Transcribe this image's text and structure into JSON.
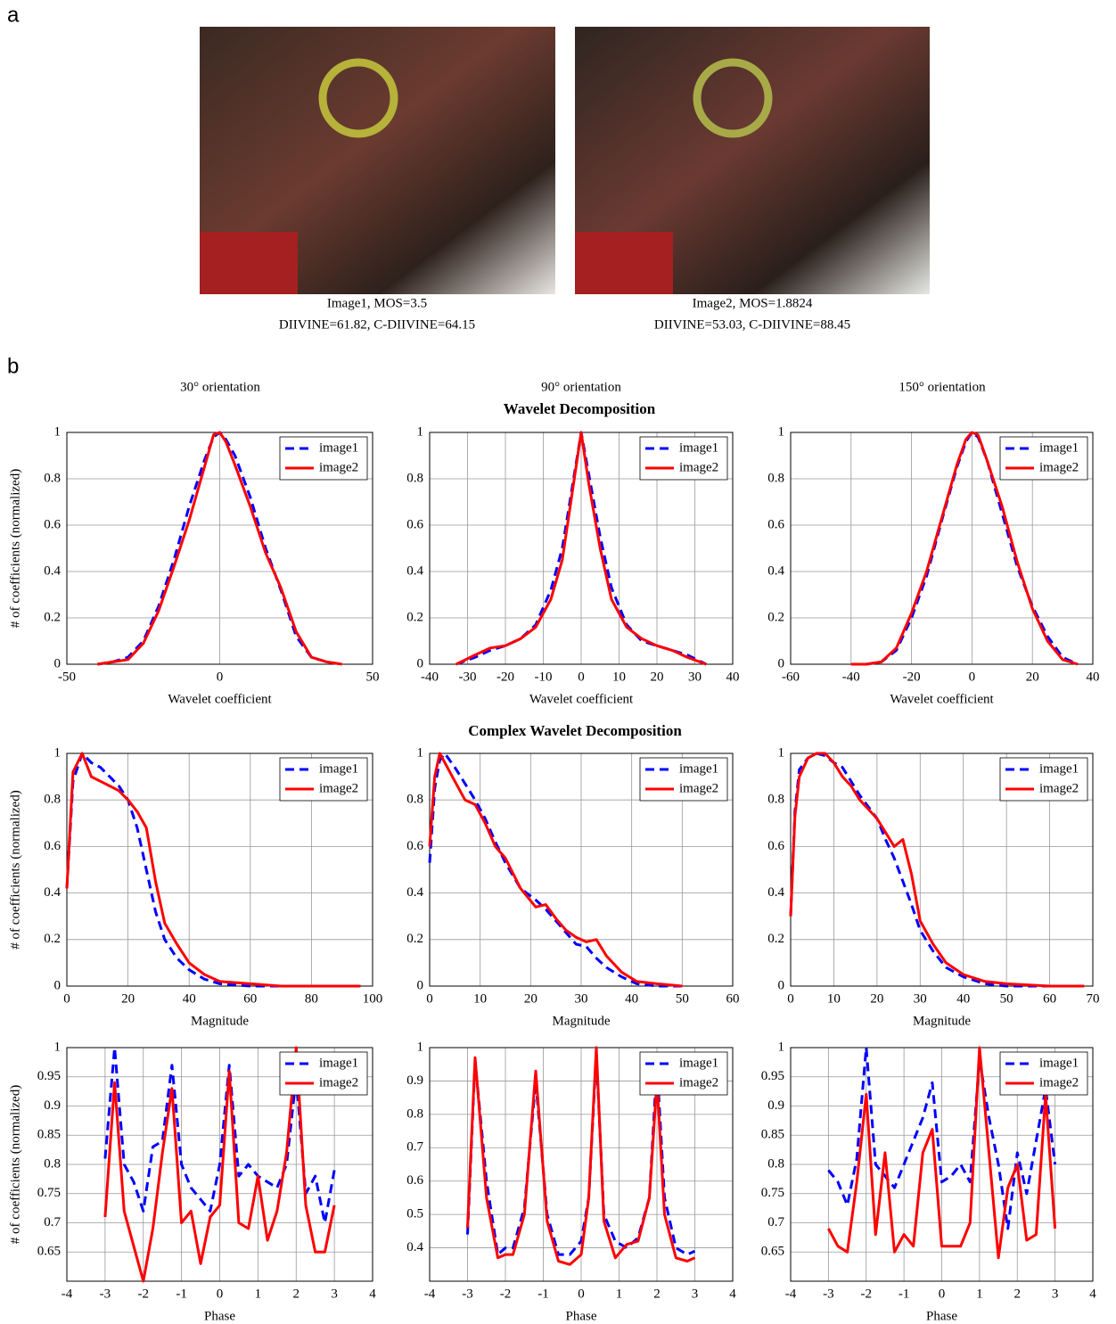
{
  "panel_a": {
    "label": "a",
    "images": [
      {
        "caption": "Image1, MOS=3.5",
        "scores": "DIIVINE=61.82, C-DIIVINE=64.15"
      },
      {
        "caption": "Image2, MOS=1.8824",
        "scores": "DIIVINE=53.03, C-DIIVINE=88.45"
      }
    ]
  },
  "panel_b": {
    "label": "b",
    "orientations": [
      "30° orientation",
      "90° orientation",
      "150° orientation"
    ],
    "sections": [
      "Wavelet Decomposition",
      "Complex Wavelet Decomposition"
    ]
  },
  "chart_data": [
    {
      "type": "line",
      "xlabel": "Wavelet coefficient",
      "ylabel": "# of coefficients (normalized)",
      "xlim": [
        -50,
        50
      ],
      "xticks": [
        -50,
        0,
        50
      ],
      "ylim": [
        0,
        1
      ],
      "yticks": [
        0,
        0.2,
        0.4,
        0.6,
        0.8,
        1
      ],
      "grid": true,
      "legend": "upper right",
      "x": [
        -40,
        -35,
        -30,
        -25,
        -20,
        -15,
        -10,
        -5,
        -2,
        0,
        2,
        5,
        10,
        15,
        20,
        25,
        30,
        35,
        40
      ],
      "series": [
        {
          "name": "image1",
          "color": "#0000ff",
          "style": "dashed",
          "values": [
            0,
            0.01,
            0.03,
            0.1,
            0.25,
            0.45,
            0.68,
            0.88,
            0.98,
            1,
            0.97,
            0.9,
            0.72,
            0.5,
            0.32,
            0.12,
            0.03,
            0.01,
            0
          ]
        },
        {
          "name": "image2",
          "color": "#ff0000",
          "style": "solid",
          "values": [
            0,
            0.01,
            0.02,
            0.09,
            0.23,
            0.42,
            0.62,
            0.85,
            0.99,
            1,
            0.96,
            0.86,
            0.68,
            0.48,
            0.33,
            0.14,
            0.03,
            0.01,
            0
          ]
        }
      ]
    },
    {
      "type": "line",
      "xlabel": "Wavelet coefficient",
      "xlim": [
        -40,
        40
      ],
      "xticks": [
        -40,
        -30,
        -20,
        -10,
        0,
        10,
        20,
        30,
        40
      ],
      "ylim": [
        0,
        1
      ],
      "yticks": [
        0,
        0.2,
        0.4,
        0.6,
        0.8,
        1
      ],
      "grid": true,
      "legend": "upper right",
      "x": [
        -33,
        -28,
        -24,
        -20,
        -16,
        -12,
        -8,
        -5,
        -2,
        0,
        2,
        5,
        8,
        12,
        16,
        20,
        24,
        28,
        33
      ],
      "series": [
        {
          "name": "image1",
          "color": "#0000ff",
          "style": "dashed",
          "values": [
            0,
            0.03,
            0.06,
            0.08,
            0.11,
            0.17,
            0.32,
            0.5,
            0.8,
            1,
            0.82,
            0.55,
            0.33,
            0.17,
            0.1,
            0.08,
            0.06,
            0.04,
            0
          ]
        },
        {
          "name": "image2",
          "color": "#ff0000",
          "style": "solid",
          "values": [
            0,
            0.04,
            0.07,
            0.08,
            0.11,
            0.16,
            0.28,
            0.45,
            0.78,
            1,
            0.78,
            0.5,
            0.28,
            0.16,
            0.11,
            0.08,
            0.06,
            0.03,
            0
          ]
        }
      ]
    },
    {
      "type": "line",
      "xlabel": "Wavelet coefficient",
      "xlim": [
        -60,
        40
      ],
      "xticks": [
        -60,
        -40,
        -20,
        0,
        20,
        40
      ],
      "ylim": [
        0,
        1
      ],
      "yticks": [
        0,
        0.2,
        0.4,
        0.6,
        0.8,
        1
      ],
      "grid": true,
      "legend": "upper right",
      "x": [
        -40,
        -35,
        -30,
        -25,
        -20,
        -15,
        -10,
        -5,
        -2,
        0,
        2,
        5,
        10,
        15,
        20,
        25,
        30,
        35
      ],
      "series": [
        {
          "name": "image1",
          "color": "#0000ff",
          "style": "dashed",
          "values": [
            0,
            0,
            0.01,
            0.06,
            0.2,
            0.38,
            0.62,
            0.85,
            0.96,
            1,
            0.98,
            0.88,
            0.65,
            0.42,
            0.25,
            0.12,
            0.03,
            0
          ]
        },
        {
          "name": "image2",
          "color": "#ff0000",
          "style": "solid",
          "values": [
            0,
            0,
            0.01,
            0.07,
            0.22,
            0.4,
            0.63,
            0.86,
            0.97,
            1,
            0.99,
            0.88,
            0.68,
            0.44,
            0.24,
            0.1,
            0.02,
            0
          ]
        }
      ]
    },
    {
      "type": "line",
      "xlabel": "Magnitude",
      "ylabel": "# of coefficients (normalized)",
      "xlim": [
        0,
        100
      ],
      "xticks": [
        0,
        20,
        40,
        60,
        80,
        100
      ],
      "ylim": [
        0,
        1
      ],
      "yticks": [
        0,
        0.2,
        0.4,
        0.6,
        0.8,
        1
      ],
      "grid": true,
      "legend": "upper right",
      "x": [
        0,
        2,
        5,
        8,
        11,
        14,
        17,
        20,
        23,
        26,
        29,
        32,
        36,
        40,
        45,
        50,
        60,
        70,
        80,
        90,
        96
      ],
      "series": [
        {
          "name": "image1",
          "color": "#0000ff",
          "style": "dashed",
          "values": [
            0.42,
            0.88,
            1,
            0.96,
            0.94,
            0.9,
            0.86,
            0.8,
            0.68,
            0.5,
            0.32,
            0.2,
            0.12,
            0.07,
            0.03,
            0.01,
            0,
            0,
            0,
            0,
            0
          ]
        },
        {
          "name": "image2",
          "color": "#ff0000",
          "style": "solid",
          "values": [
            0.42,
            0.92,
            1,
            0.9,
            0.88,
            0.86,
            0.84,
            0.8,
            0.75,
            0.68,
            0.45,
            0.27,
            0.18,
            0.1,
            0.05,
            0.02,
            0.01,
            0,
            0,
            0,
            0
          ]
        }
      ]
    },
    {
      "type": "line",
      "xlabel": "Magnitude",
      "xlim": [
        0,
        60
      ],
      "xticks": [
        0,
        10,
        20,
        30,
        40,
        50,
        60
      ],
      "ylim": [
        0,
        1
      ],
      "yticks": [
        0,
        0.2,
        0.4,
        0.6,
        0.8,
        1
      ],
      "grid": true,
      "legend": "upper right",
      "x": [
        0,
        1,
        2,
        3,
        5,
        7,
        9,
        11,
        13,
        15,
        18,
        21,
        23,
        25,
        27,
        29,
        31,
        33,
        35,
        38,
        41,
        45,
        50
      ],
      "series": [
        {
          "name": "image1",
          "color": "#0000ff",
          "style": "dashed",
          "values": [
            0.53,
            0.85,
            0.97,
            1,
            0.94,
            0.87,
            0.8,
            0.72,
            0.62,
            0.53,
            0.42,
            0.37,
            0.33,
            0.28,
            0.23,
            0.18,
            0.17,
            0.12,
            0.08,
            0.04,
            0.01,
            0,
            0
          ]
        },
        {
          "name": "image2",
          "color": "#ff0000",
          "style": "solid",
          "values": [
            0.6,
            0.9,
            1,
            0.96,
            0.88,
            0.8,
            0.78,
            0.7,
            0.6,
            0.55,
            0.42,
            0.34,
            0.35,
            0.29,
            0.24,
            0.21,
            0.19,
            0.2,
            0.13,
            0.06,
            0.02,
            0.01,
            0
          ]
        }
      ]
    },
    {
      "type": "line",
      "xlabel": "Magnitude",
      "xlim": [
        0,
        70
      ],
      "xticks": [
        0,
        10,
        20,
        30,
        40,
        50,
        60,
        70
      ],
      "ylim": [
        0,
        1
      ],
      "yticks": [
        0,
        0.2,
        0.4,
        0.6,
        0.8,
        1
      ],
      "grid": true,
      "legend": "upper right",
      "x": [
        0,
        1,
        2,
        4,
        6,
        8,
        10,
        12,
        14,
        16,
        18,
        20,
        22,
        24,
        26,
        28,
        30,
        33,
        36,
        40,
        45,
        50,
        60,
        68
      ],
      "series": [
        {
          "name": "image1",
          "color": "#0000ff",
          "style": "dashed",
          "values": [
            0.3,
            0.75,
            0.93,
            0.98,
            1,
            0.99,
            0.96,
            0.94,
            0.88,
            0.82,
            0.77,
            0.72,
            0.63,
            0.55,
            0.45,
            0.35,
            0.24,
            0.15,
            0.08,
            0.04,
            0.01,
            0,
            0,
            0
          ]
        },
        {
          "name": "image2",
          "color": "#ff0000",
          "style": "solid",
          "values": [
            0.3,
            0.73,
            0.9,
            0.98,
            1,
            1,
            0.96,
            0.9,
            0.86,
            0.8,
            0.76,
            0.72,
            0.66,
            0.6,
            0.63,
            0.48,
            0.28,
            0.18,
            0.1,
            0.05,
            0.02,
            0.01,
            0,
            0
          ]
        }
      ]
    },
    {
      "type": "line",
      "xlabel": "Phase",
      "ylabel": "# of coefficients (normalized)",
      "xlim": [
        -4,
        4
      ],
      "xticks": [
        -4,
        -3,
        -2,
        -1,
        0,
        1,
        2,
        3,
        4
      ],
      "ylim": [
        0.6,
        1
      ],
      "yticks": [
        0.65,
        0.7,
        0.75,
        0.8,
        0.85,
        0.9,
        0.95,
        1
      ],
      "grid": true,
      "legend": "upper right",
      "x": [
        -3,
        -2.75,
        -2.5,
        -2.25,
        -2,
        -1.75,
        -1.5,
        -1.25,
        -1,
        -0.75,
        -0.5,
        -0.25,
        0,
        0.25,
        0.5,
        0.75,
        1,
        1.25,
        1.5,
        1.75,
        2,
        2.25,
        2.5,
        2.75,
        3
      ],
      "series": [
        {
          "name": "image1",
          "color": "#0000ff",
          "style": "dashed",
          "values": [
            0.81,
            1,
            0.8,
            0.77,
            0.72,
            0.83,
            0.84,
            0.97,
            0.8,
            0.76,
            0.74,
            0.72,
            0.8,
            0.97,
            0.78,
            0.8,
            0.78,
            0.77,
            0.76,
            0.8,
            0.95,
            0.75,
            0.78,
            0.7,
            0.79
          ]
        },
        {
          "name": "image2",
          "color": "#ff0000",
          "style": "solid",
          "values": [
            0.71,
            0.94,
            0.72,
            0.66,
            0.6,
            0.69,
            0.82,
            0.93,
            0.7,
            0.72,
            0.63,
            0.71,
            0.73,
            0.96,
            0.7,
            0.69,
            0.78,
            0.67,
            0.72,
            0.82,
            1,
            0.73,
            0.65,
            0.65,
            0.73
          ]
        }
      ]
    },
    {
      "type": "line",
      "xlabel": "Phase",
      "xlim": [
        -4,
        4
      ],
      "xticks": [
        -4,
        -3,
        -2,
        -1,
        0,
        1,
        2,
        3,
        4
      ],
      "ylim": [
        0.3,
        1
      ],
      "yticks": [
        0.4,
        0.5,
        0.6,
        0.7,
        0.8,
        0.9,
        1
      ],
      "grid": true,
      "legend": "upper right",
      "x": [
        -3,
        -2.8,
        -2.5,
        -2.2,
        -2,
        -1.8,
        -1.5,
        -1.2,
        -0.9,
        -0.6,
        -0.3,
        0,
        0.2,
        0.4,
        0.6,
        0.9,
        1.2,
        1.5,
        1.8,
        2,
        2.2,
        2.5,
        2.8,
        3
      ],
      "series": [
        {
          "name": "image1",
          "color": "#0000ff",
          "style": "dashed",
          "values": [
            0.44,
            0.96,
            0.6,
            0.38,
            0.4,
            0.4,
            0.52,
            0.9,
            0.5,
            0.38,
            0.38,
            0.42,
            0.55,
            0.98,
            0.5,
            0.42,
            0.4,
            0.43,
            0.55,
            0.95,
            0.55,
            0.4,
            0.38,
            0.39
          ]
        },
        {
          "name": "image2",
          "color": "#ff0000",
          "style": "solid",
          "values": [
            0.46,
            0.97,
            0.55,
            0.37,
            0.38,
            0.38,
            0.5,
            0.93,
            0.48,
            0.36,
            0.35,
            0.38,
            0.55,
            1,
            0.48,
            0.37,
            0.41,
            0.42,
            0.55,
            0.9,
            0.5,
            0.37,
            0.36,
            0.37
          ]
        }
      ]
    },
    {
      "type": "line",
      "xlabel": "Phase",
      "xlim": [
        -4,
        4
      ],
      "xticks": [
        -4,
        -3,
        -2,
        -1,
        0,
        1,
        2,
        3,
        4
      ],
      "ylim": [
        0.6,
        1
      ],
      "yticks": [
        0.65,
        0.7,
        0.75,
        0.8,
        0.85,
        0.9,
        0.95,
        1
      ],
      "grid": true,
      "legend": "upper right",
      "x": [
        -3,
        -2.75,
        -2.5,
        -2.25,
        -2,
        -1.75,
        -1.5,
        -1.25,
        -1,
        -0.75,
        -0.5,
        -0.25,
        0,
        0.25,
        0.5,
        0.75,
        1,
        1.25,
        1.5,
        1.75,
        2,
        2.25,
        2.5,
        2.75,
        3
      ],
      "series": [
        {
          "name": "image1",
          "color": "#0000ff",
          "style": "dashed",
          "values": [
            0.79,
            0.77,
            0.73,
            0.81,
            1,
            0.8,
            0.78,
            0.76,
            0.8,
            0.84,
            0.88,
            0.94,
            0.77,
            0.78,
            0.8,
            0.77,
            0.98,
            0.88,
            0.8,
            0.69,
            0.82,
            0.75,
            0.84,
            0.93,
            0.8
          ]
        },
        {
          "name": "image2",
          "color": "#ff0000",
          "style": "solid",
          "values": [
            0.69,
            0.66,
            0.65,
            0.77,
            0.92,
            0.68,
            0.82,
            0.65,
            0.68,
            0.66,
            0.82,
            0.86,
            0.66,
            0.66,
            0.66,
            0.7,
            1,
            0.82,
            0.64,
            0.76,
            0.8,
            0.67,
            0.68,
            0.92,
            0.69
          ]
        }
      ]
    }
  ]
}
